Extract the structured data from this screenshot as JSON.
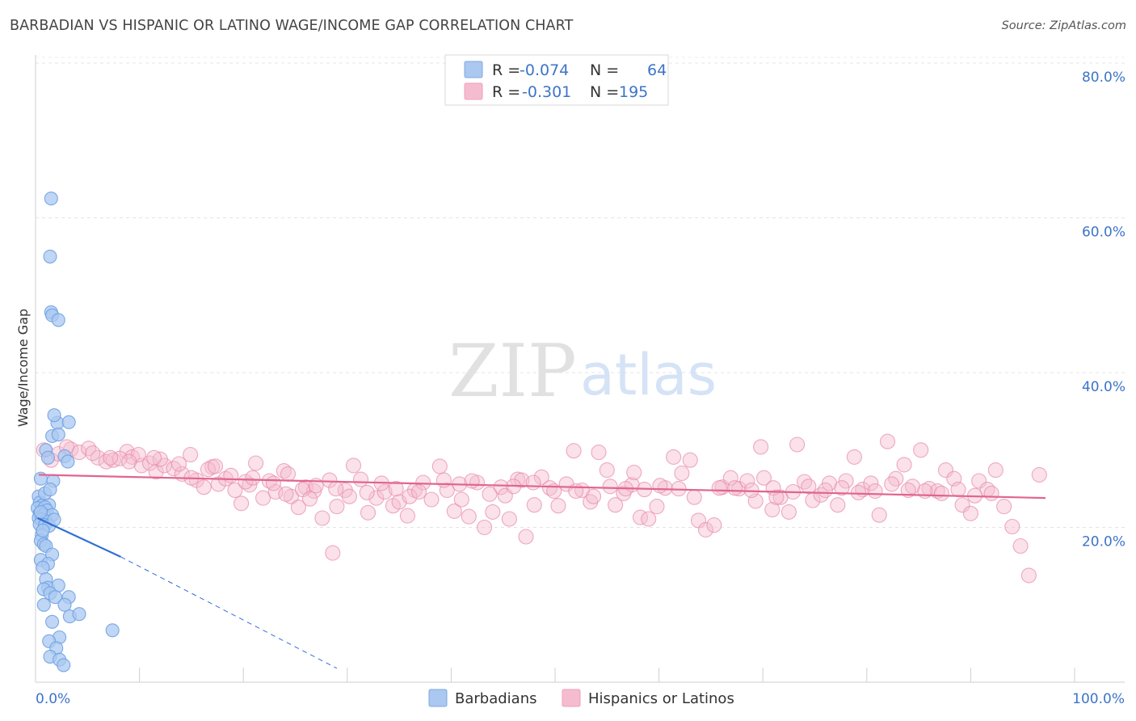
{
  "header": {
    "title": "BARBADIAN VS HISPANIC OR LATINO WAGE/INCOME GAP CORRELATION CHART",
    "source": "Source: ZipAtlas.com"
  },
  "watermark": {
    "zip": "ZIP",
    "atlas": "atlas"
  },
  "legend_top": [
    {
      "r_label": "R = ",
      "r_value": "-0.074",
      "n_label": "N = ",
      "n_value": "64",
      "color": "#aac8f0",
      "stroke": "#7ea9e0"
    },
    {
      "r_label": "R = ",
      "r_value": "-0.301",
      "n_label": "N = ",
      "n_value": "195",
      "color": "#f5bcd0",
      "stroke": "#ee9fba"
    }
  ],
  "legend_bottom": [
    {
      "label": "Barbadians",
      "color": "#aac8f0",
      "stroke": "#7ea9e0"
    },
    {
      "label": "Hispanics or Latinos",
      "color": "#f5bcd0",
      "stroke": "#ee9fba"
    }
  ],
  "chart_data": {
    "type": "scatter",
    "title": "BARBADIAN VS HISPANIC OR LATINO WAGE/INCOME GAP CORRELATION CHART",
    "xlabel": "",
    "ylabel": "Wage/Income Gap",
    "xlim": [
      0,
      100
    ],
    "ylim": [
      0,
      80
    ],
    "x_tick_labels": [
      "0.0%",
      "100.0%"
    ],
    "y_ticks": [
      20,
      40,
      60,
      80
    ],
    "y_tick_labels": [
      "20.0%",
      "40.0%",
      "60.0%",
      "80.0%"
    ],
    "grid": true,
    "legend_position": "top-center",
    "series": [
      {
        "name": "Barbadians",
        "color": "#6fa0e4",
        "fill": "#aac8f0",
        "R": -0.074,
        "N": 64,
        "trend": {
          "x_start": 0.2,
          "y_start": 21.2,
          "x_solid_end": 8.2,
          "y_solid_end": 16.2,
          "x_dash_end": 29.0,
          "y_dash_end": 1.8
        },
        "points": [
          [
            1.5,
            62.5
          ],
          [
            1.4,
            55.0
          ],
          [
            1.5,
            47.8
          ],
          [
            1.6,
            47.4
          ],
          [
            2.2,
            46.8
          ],
          [
            2.1,
            33.5
          ],
          [
            3.2,
            33.6
          ],
          [
            1.8,
            34.5
          ],
          [
            1.6,
            31.8
          ],
          [
            2.2,
            32.0
          ],
          [
            1.0,
            30.0
          ],
          [
            1.2,
            29.0
          ],
          [
            2.8,
            29.2
          ],
          [
            3.1,
            28.5
          ],
          [
            1.7,
            26.0
          ],
          [
            0.5,
            26.3
          ],
          [
            0.3,
            24.0
          ],
          [
            0.4,
            23.2
          ],
          [
            0.6,
            22.8
          ],
          [
            1.3,
            22.9
          ],
          [
            0.2,
            22.5
          ],
          [
            0.9,
            22.6
          ],
          [
            1.1,
            22.2
          ],
          [
            0.4,
            21.8
          ],
          [
            0.8,
            21.6
          ],
          [
            1.6,
            21.6
          ],
          [
            0.3,
            21.2
          ],
          [
            0.6,
            21.0
          ],
          [
            1.0,
            20.8
          ],
          [
            0.4,
            20.4
          ],
          [
            0.9,
            20.3
          ],
          [
            1.3,
            20.2
          ],
          [
            0.6,
            19.0
          ],
          [
            0.5,
            18.3
          ],
          [
            0.8,
            17.8
          ],
          [
            1.0,
            17.6
          ],
          [
            1.6,
            16.5
          ],
          [
            0.5,
            15.8
          ],
          [
            1.2,
            15.3
          ],
          [
            0.7,
            14.8
          ],
          [
            1.0,
            13.3
          ],
          [
            1.2,
            12.2
          ],
          [
            0.8,
            12.0
          ],
          [
            2.2,
            12.5
          ],
          [
            1.4,
            11.5
          ],
          [
            1.9,
            11.0
          ],
          [
            3.2,
            11.0
          ],
          [
            0.8,
            10.0
          ],
          [
            2.8,
            10.0
          ],
          [
            3.3,
            8.5
          ],
          [
            4.2,
            8.8
          ],
          [
            1.6,
            7.8
          ],
          [
            7.4,
            6.7
          ],
          [
            2.3,
            5.8
          ],
          [
            1.3,
            5.3
          ],
          [
            2.0,
            4.4
          ],
          [
            1.4,
            3.3
          ],
          [
            2.3,
            2.9
          ],
          [
            2.7,
            2.2
          ],
          [
            0.9,
            24.4
          ],
          [
            1.4,
            24.9
          ],
          [
            0.7,
            19.6
          ],
          [
            0.5,
            22.0
          ],
          [
            1.8,
            21.0
          ]
        ]
      },
      {
        "name": "Hispanics or Latinos",
        "color": "#e889a8",
        "fill": "#f5bcd0",
        "R": -0.301,
        "N": 195,
        "trend": {
          "x_start": 0.3,
          "y_start": 26.8,
          "x_end": 97.2,
          "y_end": 23.8
        },
        "points": [
          [
            0.8,
            30.0
          ],
          [
            1.5,
            28.7
          ],
          [
            2.2,
            29.5
          ],
          [
            3.4,
            30.1
          ],
          [
            4.2,
            29.7
          ],
          [
            5.1,
            30.2
          ],
          [
            6.0,
            29.0
          ],
          [
            6.8,
            28.5
          ],
          [
            7.5,
            28.7
          ],
          [
            8.8,
            29.8
          ],
          [
            9.3,
            29.1
          ],
          [
            10.2,
            28.0
          ],
          [
            11.0,
            28.3
          ],
          [
            11.6,
            27.2
          ],
          [
            12.4,
            28.0
          ],
          [
            13.3,
            27.6
          ],
          [
            14.1,
            26.9
          ],
          [
            14.9,
            29.4
          ],
          [
            15.5,
            26.1
          ],
          [
            16.2,
            25.2
          ],
          [
            17.0,
            27.8
          ],
          [
            17.6,
            25.6
          ],
          [
            18.3,
            26.3
          ],
          [
            19.2,
            24.8
          ],
          [
            19.8,
            23.1
          ],
          [
            20.6,
            25.5
          ],
          [
            21.2,
            28.3
          ],
          [
            21.9,
            23.8
          ],
          [
            22.5,
            26.0
          ],
          [
            23.1,
            24.6
          ],
          [
            23.9,
            27.3
          ],
          [
            24.6,
            24.0
          ],
          [
            25.3,
            22.6
          ],
          [
            26.0,
            25.2
          ],
          [
            26.8,
            24.7
          ],
          [
            27.6,
            21.2
          ],
          [
            28.3,
            26.1
          ],
          [
            29.0,
            22.7
          ],
          [
            29.8,
            24.8
          ],
          [
            30.6,
            28.0
          ],
          [
            31.3,
            26.2
          ],
          [
            32.0,
            21.9
          ],
          [
            32.8,
            23.8
          ],
          [
            33.6,
            24.6
          ],
          [
            34.4,
            22.8
          ],
          [
            35.0,
            23.3
          ],
          [
            35.8,
            21.5
          ],
          [
            36.5,
            24.8
          ],
          [
            37.3,
            25.8
          ],
          [
            38.1,
            23.6
          ],
          [
            38.9,
            27.9
          ],
          [
            39.6,
            24.8
          ],
          [
            40.3,
            22.1
          ],
          [
            41.0,
            23.6
          ],
          [
            41.7,
            21.4
          ],
          [
            42.5,
            25.8
          ],
          [
            43.2,
            20.0
          ],
          [
            44.0,
            22.0
          ],
          [
            44.8,
            25.2
          ],
          [
            45.6,
            21.1
          ],
          [
            46.4,
            26.2
          ],
          [
            47.2,
            18.8
          ],
          [
            48.0,
            22.9
          ],
          [
            48.7,
            26.5
          ],
          [
            49.5,
            25.1
          ],
          [
            50.3,
            22.8
          ],
          [
            51.1,
            25.6
          ],
          [
            51.8,
            29.9
          ],
          [
            52.6,
            24.8
          ],
          [
            53.4,
            23.3
          ],
          [
            54.2,
            29.7
          ],
          [
            55.0,
            27.4
          ],
          [
            55.8,
            22.9
          ],
          [
            56.6,
            24.4
          ],
          [
            57.4,
            25.5
          ],
          [
            58.2,
            21.3
          ],
          [
            59.0,
            21.1
          ],
          [
            59.8,
            22.7
          ],
          [
            60.6,
            25.1
          ],
          [
            61.4,
            29.1
          ],
          [
            62.2,
            27.0
          ],
          [
            63.0,
            28.7
          ],
          [
            63.8,
            20.9
          ],
          [
            64.5,
            19.7
          ],
          [
            65.3,
            20.3
          ],
          [
            66.1,
            25.2
          ],
          [
            66.9,
            26.4
          ],
          [
            67.7,
            25.0
          ],
          [
            68.5,
            26.0
          ],
          [
            69.3,
            23.4
          ],
          [
            70.1,
            26.4
          ],
          [
            70.9,
            22.3
          ],
          [
            71.7,
            23.9
          ],
          [
            72.5,
            22.0
          ],
          [
            73.3,
            30.7
          ],
          [
            74.0,
            25.9
          ],
          [
            74.8,
            23.5
          ],
          [
            75.6,
            24.2
          ],
          [
            76.4,
            25.7
          ],
          [
            77.2,
            22.9
          ],
          [
            78.0,
            26.0
          ],
          [
            78.8,
            29.1
          ],
          [
            79.6,
            24.9
          ],
          [
            80.4,
            25.7
          ],
          [
            81.2,
            21.6
          ],
          [
            82.0,
            31.1
          ],
          [
            82.8,
            26.3
          ],
          [
            83.6,
            28.1
          ],
          [
            84.4,
            25.3
          ],
          [
            85.2,
            30.0
          ],
          [
            86.0,
            25.0
          ],
          [
            86.8,
            24.7
          ],
          [
            87.6,
            27.4
          ],
          [
            88.4,
            26.3
          ],
          [
            89.2,
            22.9
          ],
          [
            90.0,
            21.8
          ],
          [
            90.8,
            26.0
          ],
          [
            91.6,
            24.9
          ],
          [
            92.4,
            27.4
          ],
          [
            93.2,
            22.7
          ],
          [
            94.0,
            20.1
          ],
          [
            94.8,
            17.6
          ],
          [
            95.6,
            13.8
          ],
          [
            96.6,
            26.8
          ],
          [
            28.6,
            16.7
          ],
          [
            36.0,
            24.0
          ],
          [
            46.8,
            26.1
          ],
          [
            57.6,
            27.1
          ],
          [
            69.8,
            30.4
          ],
          [
            71.0,
            25.1
          ],
          [
            8.1,
            28.9
          ],
          [
            9.9,
            29.4
          ],
          [
            12.0,
            28.8
          ],
          [
            15.0,
            26.4
          ],
          [
            16.6,
            27.5
          ],
          [
            18.8,
            26.7
          ],
          [
            20.2,
            25.9
          ],
          [
            22.9,
            25.7
          ],
          [
            24.1,
            24.3
          ],
          [
            25.7,
            24.9
          ],
          [
            27.0,
            25.4
          ],
          [
            28.9,
            25.0
          ],
          [
            30.2,
            24.0
          ],
          [
            31.9,
            24.5
          ],
          [
            33.3,
            25.7
          ],
          [
            34.7,
            25.0
          ],
          [
            36.9,
            24.6
          ],
          [
            39.3,
            26.1
          ],
          [
            40.8,
            25.6
          ],
          [
            42.0,
            26.0
          ],
          [
            43.7,
            24.3
          ],
          [
            45.2,
            24.1
          ],
          [
            46.0,
            25.3
          ],
          [
            47.9,
            25.8
          ],
          [
            49.9,
            24.7
          ],
          [
            52.0,
            24.7
          ],
          [
            53.7,
            24.0
          ],
          [
            55.3,
            25.3
          ],
          [
            56.8,
            25.0
          ],
          [
            58.6,
            24.9
          ],
          [
            60.1,
            25.4
          ],
          [
            61.9,
            25.0
          ],
          [
            63.4,
            23.9
          ],
          [
            65.8,
            25.1
          ],
          [
            67.3,
            25.1
          ],
          [
            68.9,
            24.8
          ],
          [
            71.3,
            23.9
          ],
          [
            72.9,
            24.6
          ],
          [
            74.4,
            25.3
          ],
          [
            76.0,
            24.8
          ],
          [
            77.6,
            25.1
          ],
          [
            79.2,
            24.5
          ],
          [
            80.8,
            24.7
          ],
          [
            82.4,
            25.6
          ],
          [
            84.0,
            24.8
          ],
          [
            85.6,
            24.7
          ],
          [
            87.2,
            24.4
          ],
          [
            88.8,
            24.9
          ],
          [
            90.4,
            24.1
          ],
          [
            92.0,
            24.4
          ],
          [
            3.0,
            30.4
          ],
          [
            5.5,
            29.6
          ],
          [
            7.2,
            29.0
          ],
          [
            9.0,
            28.5
          ],
          [
            11.4,
            29.0
          ],
          [
            13.8,
            28.2
          ],
          [
            17.3,
            27.9
          ],
          [
            20.9,
            26.4
          ],
          [
            24.3,
            26.9
          ],
          [
            26.4,
            23.7
          ]
        ]
      }
    ]
  }
}
